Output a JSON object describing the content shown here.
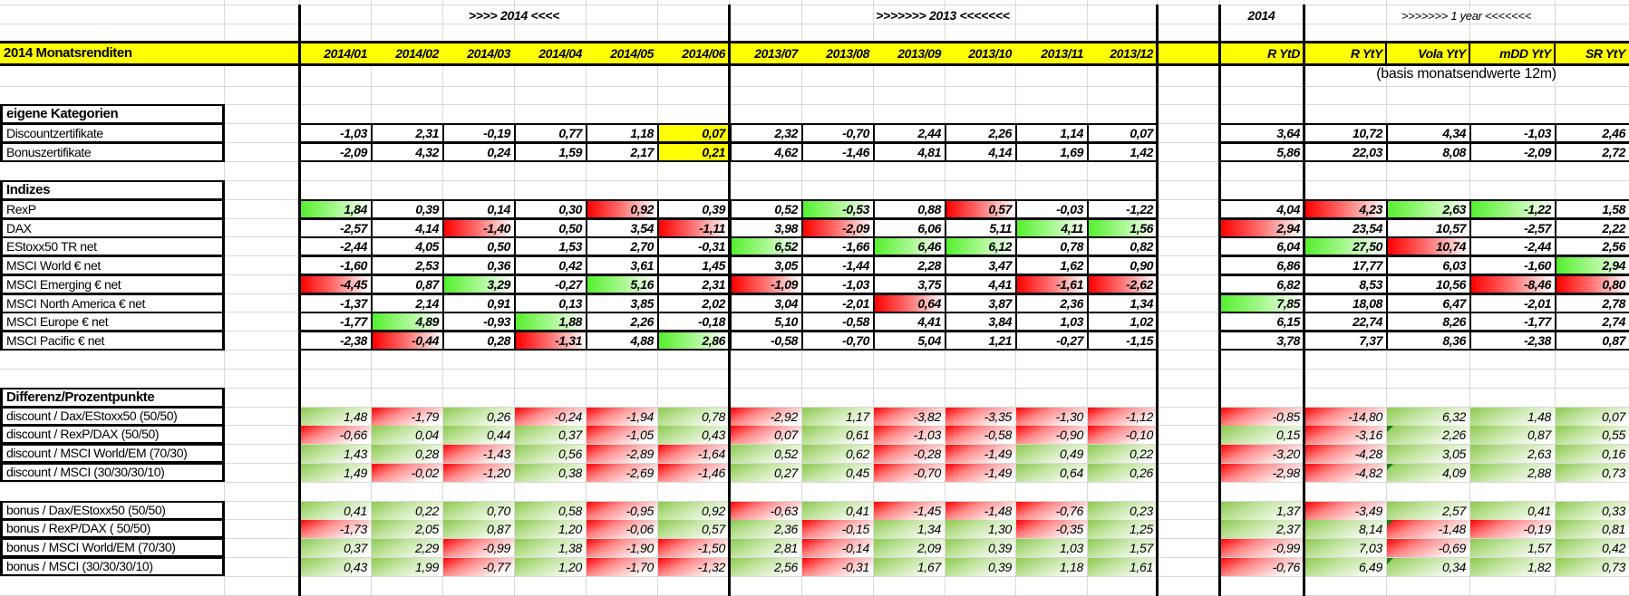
{
  "header": {
    "title_2014": ">>>> 2014 <<<<",
    "title_2013": ">>>>>>>  2013  <<<<<<<",
    "title_ytd": "2014",
    "title_1year": ">>>>>>> 1 year <<<<<<<",
    "basis_note": "(basis monatsendwerte 12m)",
    "sheet_title": "2014 Monatsrenditen",
    "columns": [
      "2014/01",
      "2014/02",
      "2014/03",
      "2014/04",
      "2014/05",
      "2014/06",
      "2013/07",
      "2013/08",
      "2013/09",
      "2013/10",
      "2013/11",
      "2013/12",
      "R YtD",
      "R YtY",
      "Vola YtY",
      "mDD YtY",
      "SR YtY"
    ]
  },
  "colors": {
    "yellow": "#ffff00",
    "red": "#ff0000",
    "green": "#55f02e",
    "diff_green": "#8cc94e"
  },
  "sections": [
    {
      "label": "eigene Kategorien",
      "type": "box",
      "rows": [
        {
          "label": "Discountzertifikate",
          "values": [
            "-1,03",
            "2,31",
            "-0,19",
            "0,77",
            "1,18",
            "0,07",
            "2,32",
            "-0,70",
            "2,44",
            "2,26",
            "1,14",
            "0,07",
            "3,64",
            "10,72",
            "4,34",
            "-1,03",
            "2,46"
          ],
          "hl": ".....y..........."
        },
        {
          "label": "Bonuszertifikate",
          "values": [
            "-2,09",
            "4,32",
            "0,24",
            "1,59",
            "2,17",
            "0,21",
            "4,62",
            "-1,46",
            "4,81",
            "4,14",
            "1,69",
            "1,42",
            "5,86",
            "22,03",
            "8,08",
            "-2,09",
            "2,72"
          ],
          "hl": ".....y..........."
        }
      ]
    },
    {
      "label": "Indizes",
      "type": "box",
      "rows": [
        {
          "label": "RexP",
          "values": [
            "1,84",
            "0,39",
            "0,14",
            "0,30",
            "0,92",
            "0,39",
            "0,52",
            "-0,53",
            "0,88",
            "0,57",
            "-0,03",
            "-1,22",
            "4,04",
            "4,23",
            "2,63",
            "-1,22",
            "1,58"
          ],
          "hl": "g...r..g.r...rgg."
        },
        {
          "label": "DAX",
          "values": [
            "-2,57",
            "4,14",
            "-1,40",
            "0,50",
            "3,54",
            "-1,11",
            "3,98",
            "-2,09",
            "6,06",
            "5,11",
            "4,11",
            "1,56",
            "2,94",
            "23,54",
            "10,57",
            "-2,57",
            "2,22"
          ],
          "hl": "..r..r.r..ggr...."
        },
        {
          "label": "EStoxx50 TR net",
          "values": [
            "-2,44",
            "4,05",
            "0,50",
            "1,53",
            "2,70",
            "-0,31",
            "6,52",
            "-1,66",
            "6,46",
            "6,12",
            "0,78",
            "0,82",
            "6,04",
            "27,50",
            "10,74",
            "-2,44",
            "2,56"
          ],
          "hl": "......g.gg...gr.."
        },
        {
          "label": "MSCI World € net",
          "values": [
            "-1,60",
            "2,53",
            "0,36",
            "0,42",
            "3,61",
            "1,45",
            "3,05",
            "-1,44",
            "2,28",
            "3,47",
            "1,62",
            "0,90",
            "6,86",
            "17,77",
            "6,03",
            "-1,60",
            "2,94"
          ],
          "hl": "................g"
        },
        {
          "label": "MSCI Emerging € net",
          "values": [
            "-4,45",
            "0,87",
            "3,29",
            "-0,27",
            "5,16",
            "2,31",
            "-1,09",
            "-1,03",
            "3,75",
            "4,41",
            "-1,61",
            "-2,62",
            "6,82",
            "8,53",
            "10,56",
            "-8,46",
            "0,80"
          ],
          "hl": "r.g.g.r...rr...rr"
        },
        {
          "label": "MSCI North America € net",
          "values": [
            "-1,37",
            "2,14",
            "0,91",
            "0,13",
            "3,85",
            "2,02",
            "3,04",
            "-2,01",
            "0,64",
            "3,87",
            "2,36",
            "1,34",
            "7,85",
            "18,08",
            "6,47",
            "-2,01",
            "2,78"
          ],
          "hl": "........r...g...."
        },
        {
          "label": "MSCI Europe € net",
          "values": [
            "-1,77",
            "4,89",
            "-0,93",
            "1,88",
            "2,26",
            "-0,18",
            "5,10",
            "-0,58",
            "4,41",
            "3,84",
            "1,03",
            "1,02",
            "6,15",
            "22,74",
            "8,26",
            "-1,77",
            "2,74"
          ],
          "hl": ".g.g............."
        },
        {
          "label": "MSCI Pacific € net",
          "values": [
            "-2,38",
            "-0,44",
            "0,28",
            "-1,31",
            "4,88",
            "2,86",
            "-0,58",
            "-0,70",
            "5,04",
            "1,21",
            "-0,27",
            "-1,15",
            "3,78",
            "7,37",
            "8,36",
            "-2,38",
            "0,87"
          ],
          "hl": ".r.r.g..........."
        }
      ]
    },
    {
      "label": "Differenz/Prozentpunkte",
      "type": "diff",
      "rows": [
        {
          "label": "discount / Dax/EStoxx50 (50/50)",
          "values": [
            "1,48",
            "-1,79",
            "0,26",
            "-0,24",
            "-1,94",
            "0,78",
            "-2,92",
            "1,17",
            "-3,82",
            "-3,35",
            "-1,30",
            "-1,12",
            "-0,85",
            "-14,80",
            "6,32",
            "1,48",
            "0,07"
          ],
          "hl": "grgrrgrgrrrrrrggg"
        },
        {
          "label": "discount / RexP/DAX (50/50)",
          "values": [
            "-0,66",
            "0,04",
            "0,44",
            "0,37",
            "-1,05",
            "0,43",
            "0,07",
            "0,61",
            "-1,03",
            "-0,58",
            "-0,90",
            "-0,10",
            "0,15",
            "-3,16",
            "2,26",
            "0,87",
            "0,55"
          ],
          "hl": "rgggrgrgrrrrgrggg",
          "marker": 14
        },
        {
          "label": "discount / MSCI World/EM (70/30)",
          "values": [
            "1,43",
            "0,28",
            "-1,43",
            "0,56",
            "-2,89",
            "-1,64",
            "0,52",
            "0,62",
            "-0,28",
            "-1,49",
            "0,49",
            "0,22",
            "-3,20",
            "-4,28",
            "3,05",
            "2,63",
            "0,16"
          ],
          "hl": "ggrgrrggrrggrrggg"
        },
        {
          "label": "discount / MSCI (30/30/30/10)",
          "values": [
            "1,49",
            "-0,02",
            "-1,20",
            "0,38",
            "-2,69",
            "-1,46",
            "0,27",
            "0,45",
            "-0,70",
            "-1,49",
            "0,64",
            "0,26",
            "-2,98",
            "-4,82",
            "4,09",
            "2,88",
            "0,73"
          ],
          "hl": "grrgrrggrrggrrggg",
          "marker": 14
        }
      ]
    },
    {
      "label": "",
      "type": "diff",
      "rows": [
        {
          "label": "bonus / Dax/EStoxx50 (50/50)",
          "values": [
            "0,41",
            "0,22",
            "0,70",
            "0,58",
            "-0,95",
            "0,92",
            "-0,63",
            "0,41",
            "-1,45",
            "-1,48",
            "-0,76",
            "0,23",
            "1,37",
            "-3,49",
            "2,57",
            "0,41",
            "0,33"
          ],
          "hl": "ggggrgrgrrrggrggg"
        },
        {
          "label": "bonus / RexP/DAX ( 50/50)",
          "values": [
            "-1,73",
            "2,05",
            "0,87",
            "1,20",
            "-0,06",
            "0,57",
            "2,36",
            "-0,15",
            "1,34",
            "1,30",
            "-0,35",
            "1,25",
            "2,37",
            "8,14",
            "-1,48",
            "-0,19",
            "0,81"
          ],
          "hl": "rgggrggrggrgggrrg",
          "marker": 14
        },
        {
          "label": "bonus / MSCI World/EM (70/30)",
          "values": [
            "0,37",
            "2,29",
            "-0,99",
            "1,38",
            "-1,90",
            "-1,50",
            "2,81",
            "-0,14",
            "2,09",
            "0,39",
            "1,03",
            "1,57",
            "-0,99",
            "7,03",
            "-0,69",
            "1,57",
            "0,42"
          ],
          "hl": "ggrgrrgrggggrgrgg"
        },
        {
          "label": "bonus / MSCI (30/30/30/10)",
          "values": [
            "0,43",
            "1,99",
            "-0,77",
            "1,20",
            "-1,70",
            "-1,32",
            "2,56",
            "-0,31",
            "1,67",
            "0,39",
            "1,18",
            "1,61",
            "-0,76",
            "6,49",
            "0,34",
            "1,82",
            "0,73"
          ],
          "hl": "ggrgrrgrggggrgggg",
          "marker": 14
        }
      ]
    }
  ]
}
